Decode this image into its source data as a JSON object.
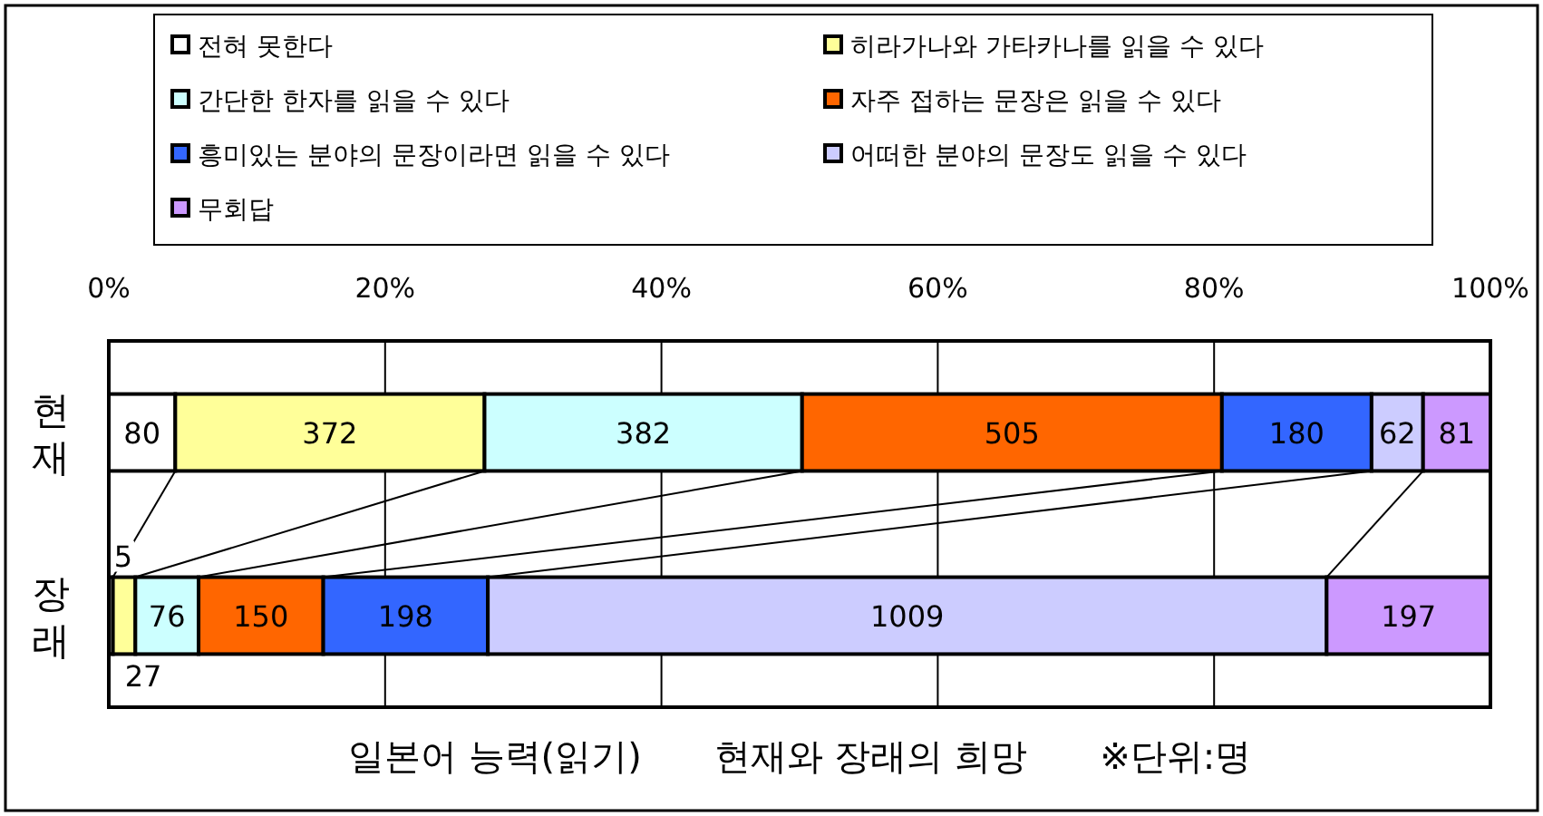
{
  "chart_data": {
    "type": "bar",
    "orientation": "horizontal",
    "stacked": true,
    "title": "일본어 능력(읽기)　　현재와 장래의 희망　　※단위:명",
    "categories": [
      "현재",
      "장래"
    ],
    "series": [
      {
        "name": "전혀 못한다",
        "color": "#ffffff",
        "values": [
          80,
          5
        ]
      },
      {
        "name": "히라가나와 가타카나를 읽을 수 있다",
        "color": "#ffff99",
        "values": [
          372,
          27
        ]
      },
      {
        "name": "간단한 한자를 읽을 수 있다",
        "color": "#ccffff",
        "values": [
          382,
          76
        ]
      },
      {
        "name": "자주 접하는 문장은 읽을 수 있다",
        "color": "#ff6600",
        "values": [
          505,
          150
        ]
      },
      {
        "name": "흥미있는 분야의 문장이라면 읽을 수 있다",
        "color": "#3366ff",
        "values": [
          180,
          198
        ]
      },
      {
        "name": "어떠한 분야의 문장도 읽을 수 있다",
        "color": "#ccccff",
        "values": [
          62,
          1009
        ]
      },
      {
        "name": "무회답",
        "color": "#cc99ff",
        "values": [
          81,
          197
        ]
      }
    ],
    "xlim": [
      0,
      1662
    ],
    "x2lim": [
      0,
      100
    ],
    "x2ticks": [
      {
        "value": 0,
        "label": "0%"
      },
      {
        "value": 20,
        "label": "20%"
      },
      {
        "value": 40,
        "label": "40%"
      },
      {
        "value": 60,
        "label": "60%"
      },
      {
        "value": 80,
        "label": "80%"
      },
      {
        "value": 100,
        "label": "100%"
      }
    ],
    "grid": "x",
    "legend": "top",
    "data_labels": true
  }
}
